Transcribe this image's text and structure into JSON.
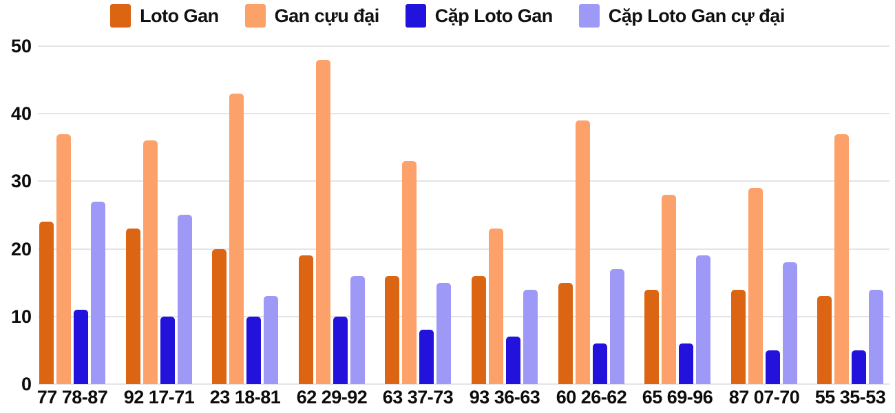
{
  "chart_data": {
    "type": "bar",
    "title": "",
    "xlabel": "",
    "ylabel": "",
    "categories": [
      "77 78-87",
      "92 17-71",
      "23 18-81",
      "62 29-92",
      "63 37-73",
      "93 36-63",
      "60 26-62",
      "65 69-96",
      "87 07-70",
      "55 35-53"
    ],
    "series": [
      {
        "name": "Loto Gan",
        "color": "#dc6513",
        "values": [
          24,
          23,
          20,
          19,
          16,
          16,
          15,
          14,
          14,
          13
        ]
      },
      {
        "name": "Gan cựu đại",
        "color": "#fda16a",
        "values": [
          37,
          36,
          43,
          48,
          33,
          23,
          39,
          28,
          29,
          37
        ]
      },
      {
        "name": "Cặp Loto Gan",
        "color": "#2212db",
        "values": [
          11,
          10,
          10,
          10,
          8,
          7,
          6,
          6,
          5,
          5
        ]
      },
      {
        "name": "Cặp Loto Gan cự đại",
        "color": "#9e99f6",
        "values": [
          27,
          25,
          13,
          16,
          15,
          14,
          17,
          19,
          18,
          14
        ]
      }
    ],
    "ylim": [
      0,
      50
    ],
    "yticks": [
      0,
      10,
      20,
      30,
      40,
      50
    ],
    "grid": true,
    "legend_position": "top"
  },
  "colors": {
    "background": "#ffffff",
    "gridline": "#e4e4e4",
    "text": "#0c0c0c"
  }
}
